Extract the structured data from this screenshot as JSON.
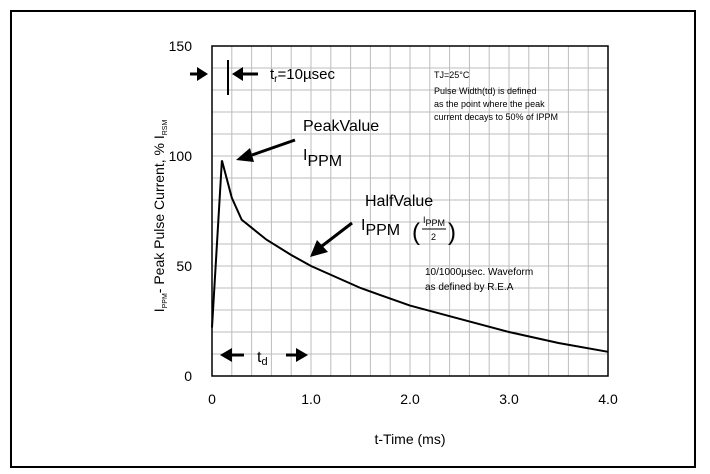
{
  "chart_data": {
    "type": "line",
    "xlabel": "t-Time (ms)",
    "ylabel_parts": [
      "I",
      "PPM",
      "- Peak Pulse Current, % I",
      "RSM"
    ],
    "x_ticks": [
      "0",
      "1.0",
      "2.0",
      "3.0",
      "4.0"
    ],
    "y_ticks": [
      "0",
      "50",
      "100",
      "150"
    ],
    "xlim": [
      0,
      4.0
    ],
    "ylim": [
      0,
      150
    ],
    "grid": true,
    "series": [
      {
        "x": [
          0,
          0.1,
          0.2,
          0.3,
          0.55,
          0.8,
          1.0,
          1.5,
          2.0,
          2.5,
          3.0,
          3.5,
          4.0
        ],
        "y": [
          22,
          98,
          81,
          71,
          62,
          55,
          50,
          40,
          32,
          26,
          20,
          15,
          11
        ]
      }
    ],
    "annotations": {
      "tr_parts": [
        "t",
        "r",
        "=10µsec"
      ],
      "peak_value": "PeakValue",
      "peak_ippm": [
        "I",
        "PPM"
      ],
      "half_value": "HalfValue",
      "half_ippm": [
        "I",
        "PPM"
      ],
      "half_fraction_num": [
        "I",
        "PPM"
      ],
      "half_fraction_den": "2",
      "td_parts": [
        "t",
        "d"
      ],
      "note_lines": [
        "TJ=25°C",
        "Pulse Width(td) is defined",
        "as the point where the peak",
        "current decays to 50% of IPPM"
      ],
      "waveform_lines": [
        "10/1000µsec. Waveform",
        "as defined by R.E.A"
      ]
    }
  }
}
